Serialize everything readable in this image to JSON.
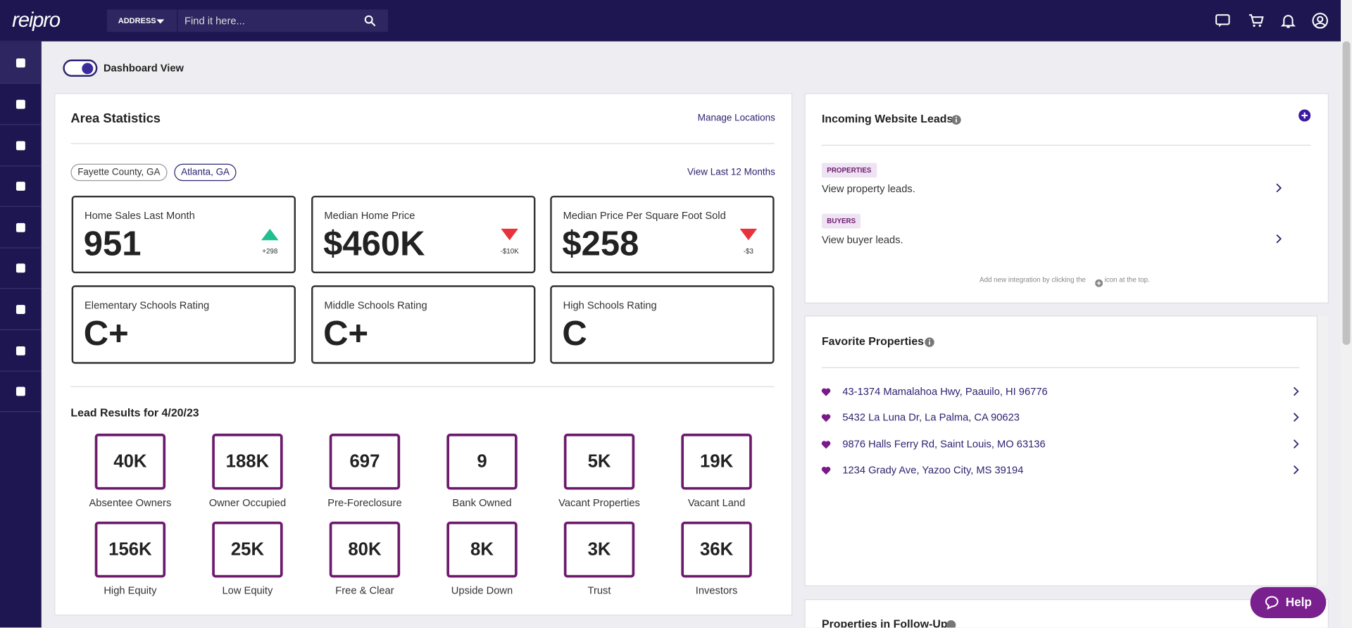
{
  "header": {
    "logo": "reipro",
    "search_type": "ADDRESS",
    "search_placeholder": "Find it here..."
  },
  "toggle_label": "Dashboard View",
  "area_statistics": {
    "title": "Area Statistics",
    "manage_link": "Manage Locations",
    "locations": [
      "Fayette County, GA",
      "Atlanta, GA"
    ],
    "view_link": "View Last 12 Months",
    "stats": [
      {
        "label": "Home Sales Last Month",
        "value": "951",
        "change": "+298",
        "direction": "up"
      },
      {
        "label": "Median Home Price",
        "value": "$460K",
        "change": "-$10K",
        "direction": "down"
      },
      {
        "label": "Median Price Per Square Foot Sold",
        "value": "$258",
        "change": "-$3",
        "direction": "down"
      }
    ],
    "schools": [
      {
        "label": "Elementary Schools Rating",
        "value": "C+"
      },
      {
        "label": "Middle Schools Rating",
        "value": "C+"
      },
      {
        "label": "High Schools Rating",
        "value": "C"
      }
    ]
  },
  "lead_results": {
    "title": "Lead Results for 4/20/23",
    "items": [
      {
        "value": "40K",
        "label": "Absentee Owners"
      },
      {
        "value": "188K",
        "label": "Owner Occupied"
      },
      {
        "value": "697",
        "label": "Pre-Foreclosure"
      },
      {
        "value": "9",
        "label": "Bank Owned"
      },
      {
        "value": "5K",
        "label": "Vacant Properties"
      },
      {
        "value": "19K",
        "label": "Vacant Land"
      },
      {
        "value": "156K",
        "label": "High Equity"
      },
      {
        "value": "25K",
        "label": "Low Equity"
      },
      {
        "value": "80K",
        "label": "Free & Clear"
      },
      {
        "value": "8K",
        "label": "Upside Down"
      },
      {
        "value": "3K",
        "label": "Trust"
      },
      {
        "value": "36K",
        "label": "Investors"
      }
    ]
  },
  "incoming_leads": {
    "title": "Incoming Website Leads",
    "items": [
      {
        "tag": "PROPERTIES",
        "text": "View property leads."
      },
      {
        "tag": "BUYERS",
        "text": "View buyer leads."
      }
    ],
    "note_start": "Add new integration by clicking the",
    "note_end": "icon at the top."
  },
  "favorites": {
    "title": "Favorite Properties",
    "items": [
      "43-1374 Mamalahoa Hwy, Paauilo, HI 96776",
      "5432 La Luna Dr, La Palma, CA 90623",
      "9876 Halls Ferry Rd, Saint Louis, MO 63136",
      "1234 Grady Ave, Yazoo City, MS 39194"
    ]
  },
  "follow_up_title": "Properties in Follow-Up",
  "help": "Help"
}
